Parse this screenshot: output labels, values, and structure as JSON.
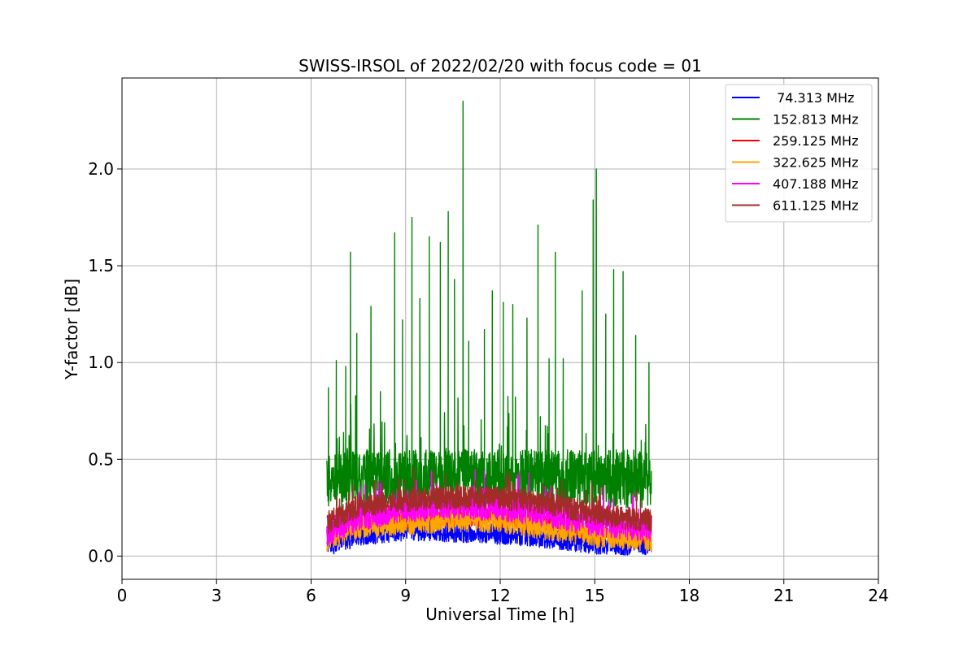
{
  "chart_data": {
    "type": "line",
    "title": "SWISS-IRSOL of 2022/02/20 with focus code = 01",
    "xlabel": "Universal Time [h]",
    "ylabel": "Y-factor [dB]",
    "xlim": [
      0,
      24
    ],
    "ylim": [
      -0.12,
      2.47
    ],
    "x_ticks": [
      0,
      3,
      6,
      9,
      12,
      15,
      18,
      21,
      24
    ],
    "x_tick_labels": [
      "0",
      "3",
      "6",
      "9",
      "12",
      "15",
      "18",
      "21",
      "24"
    ],
    "y_ticks": [
      0.0,
      0.5,
      1.0,
      1.5,
      2.0
    ],
    "y_tick_labels": [
      "0.0",
      "0.5",
      "1.0",
      "1.5",
      "2.0"
    ],
    "grid": true,
    "legend_position": "top-right",
    "x_range_observed": [
      6.5,
      16.8
    ],
    "series": [
      {
        "name": " 74.313 MHz",
        "color": "#0000ff",
        "baseline_profile": [
          [
            6.5,
            0.05
          ],
          [
            7.5,
            0.1
          ],
          [
            9.0,
            0.13
          ],
          [
            10.5,
            0.12
          ],
          [
            12.0,
            0.11
          ],
          [
            13.5,
            0.09
          ],
          [
            15.0,
            0.06
          ],
          [
            16.8,
            0.05
          ]
        ],
        "noise": 0.05,
        "spikes": []
      },
      {
        "name": "152.813 MHz",
        "color": "#008000",
        "baseline_profile": [
          [
            6.5,
            0.4
          ],
          [
            9.0,
            0.4
          ],
          [
            12.0,
            0.4
          ],
          [
            15.0,
            0.4
          ],
          [
            16.8,
            0.4
          ]
        ],
        "noise": 0.15,
        "spikes": [
          [
            6.55,
            0.87
          ],
          [
            6.8,
            1.01
          ],
          [
            7.1,
            0.98
          ],
          [
            7.25,
            1.57
          ],
          [
            7.45,
            1.15
          ],
          [
            7.9,
            1.29
          ],
          [
            8.2,
            0.85
          ],
          [
            8.65,
            1.67
          ],
          [
            8.9,
            1.22
          ],
          [
            9.2,
            1.75
          ],
          [
            9.45,
            1.33
          ],
          [
            9.75,
            1.65
          ],
          [
            10.1,
            1.62
          ],
          [
            10.35,
            1.78
          ],
          [
            10.55,
            1.43
          ],
          [
            10.82,
            2.35
          ],
          [
            11.0,
            1.11
          ],
          [
            11.5,
            1.17
          ],
          [
            11.75,
            1.37
          ],
          [
            12.1,
            1.31
          ],
          [
            12.4,
            1.3
          ],
          [
            12.85,
            1.23
          ],
          [
            13.2,
            1.71
          ],
          [
            13.55,
            1.02
          ],
          [
            13.75,
            1.57
          ],
          [
            14.0,
            1.02
          ],
          [
            14.6,
            1.37
          ],
          [
            14.95,
            1.84
          ],
          [
            15.05,
            2.0
          ],
          [
            15.35,
            1.25
          ],
          [
            15.6,
            1.48
          ],
          [
            15.9,
            1.47
          ],
          [
            16.3,
            1.14
          ],
          [
            16.72,
            1.0
          ]
        ]
      },
      {
        "name": "259.125 MHz",
        "color": "#ff0000",
        "baseline_profile": [
          [
            6.5,
            0.1
          ],
          [
            7.5,
            0.17
          ],
          [
            9.0,
            0.2
          ],
          [
            10.5,
            0.2
          ],
          [
            12.0,
            0.2
          ],
          [
            13.5,
            0.17
          ],
          [
            15.0,
            0.12
          ],
          [
            16.8,
            0.11
          ]
        ],
        "noise": 0.05,
        "spikes": []
      },
      {
        "name": "322.625 MHz",
        "color": "#ffa500",
        "baseline_profile": [
          [
            6.5,
            0.08
          ],
          [
            7.5,
            0.15
          ],
          [
            9.0,
            0.17
          ],
          [
            10.5,
            0.18
          ],
          [
            12.0,
            0.18
          ],
          [
            13.5,
            0.14
          ],
          [
            15.0,
            0.1
          ],
          [
            16.8,
            0.08
          ]
        ],
        "noise": 0.06,
        "spikes": []
      },
      {
        "name": "407.188 MHz",
        "color": "#ff00ff",
        "baseline_profile": [
          [
            6.5,
            0.12
          ],
          [
            7.5,
            0.2
          ],
          [
            9.0,
            0.24
          ],
          [
            10.5,
            0.26
          ],
          [
            12.0,
            0.25
          ],
          [
            13.5,
            0.22
          ],
          [
            15.0,
            0.17
          ],
          [
            16.8,
            0.14
          ]
        ],
        "noise": 0.07,
        "spikes": [
          [
            11.5,
            0.44
          ],
          [
            12.6,
            0.43
          ],
          [
            16.2,
            0.32
          ]
        ]
      },
      {
        "name": "611.125 MHz",
        "color": "#a52a2a",
        "baseline_profile": [
          [
            6.5,
            0.17
          ],
          [
            7.5,
            0.26
          ],
          [
            9.0,
            0.29
          ],
          [
            10.5,
            0.3
          ],
          [
            12.0,
            0.3
          ],
          [
            13.5,
            0.27
          ],
          [
            15.0,
            0.22
          ],
          [
            16.8,
            0.18
          ]
        ],
        "noise": 0.06,
        "spikes": []
      }
    ]
  }
}
